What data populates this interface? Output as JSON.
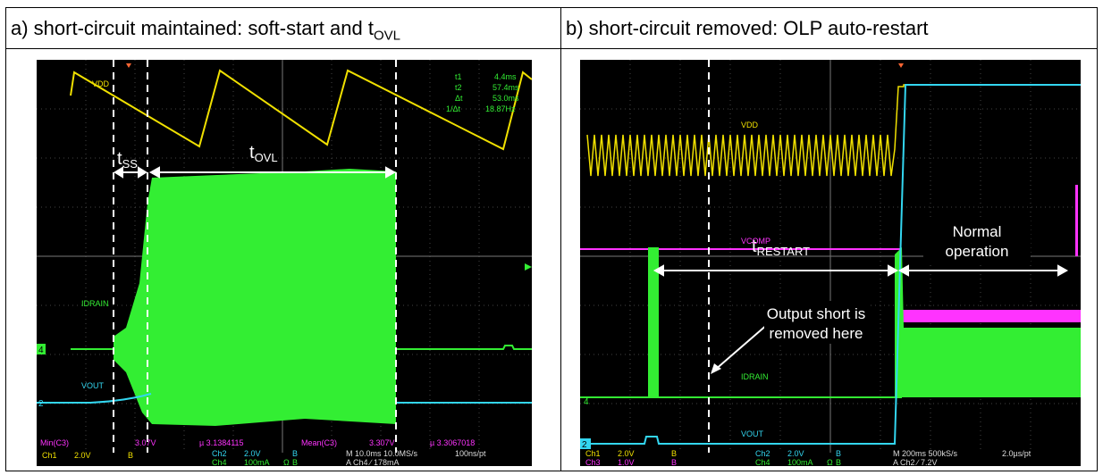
{
  "panel_a": {
    "header": "a) short-circuit maintained: soft-start and t",
    "header_sub": "OVL",
    "trace_labels": {
      "vdd": "VDD",
      "idrain": "IDRAIN",
      "vout": "VOUT"
    },
    "annot": {
      "tss": "t",
      "tss_sub": "SS",
      "tovl": "t",
      "tovl_sub": "OVL"
    },
    "cursor_readout": [
      "t1",
      "4.4ms",
      "t2",
      "57.4ms",
      "Δt",
      "53.0ms",
      "1/Δt",
      "18.87Hz"
    ],
    "markers": {
      "ch4": "4",
      "ch2": "2"
    },
    "stats": [
      "Min(C3)",
      "3.07V",
      "µ 3.1384115",
      "Mean(C3)",
      "3.307V",
      "µ 3.3067018"
    ],
    "bottom": {
      "ch1": "Ch1",
      "ch1v": "2.0V",
      "bw1": "B",
      "ch2": "Ch2",
      "ch2v": "2.0V",
      "ch4": "Ch4",
      "ch4v": "100mA",
      "omega": "Ω",
      "bw2": "B",
      "bw3": "B",
      "timebase": "M 10.0ms 10.0MS/s",
      "pt": "100ns/pt",
      "trig": "A  Ch4  ∕  178mA"
    }
  },
  "panel_b": {
    "header": "b) short-circuit removed: OLP auto-restart",
    "trace_labels": {
      "vdd": "VDD",
      "vcomp": "VCOMP",
      "idrain": "IDRAIN",
      "vout": "VOUT"
    },
    "annot": {
      "trestart": "t",
      "trestart_sub": "RESTART",
      "normal1": "Normal",
      "normal2": "operation",
      "short1": "Output short is",
      "short2": "removed here"
    },
    "markers": {
      "ch4": "4",
      "ch2": "2"
    },
    "bottom": {
      "ch1": "Ch1",
      "ch1v": "2.0V",
      "ch3": "Ch3",
      "ch3v": "1.0V",
      "bw": "B",
      "ch2": "Ch2",
      "ch2v": "2.0V",
      "ch4": "Ch4",
      "ch4v": "100mA",
      "omega": "Ω",
      "timebase": "M 200ms 500kS/s",
      "pt": "2.0µs/pt",
      "trig": "A  Ch2  ∕  7.2V"
    }
  },
  "colors": {
    "vdd": "#f0e000",
    "idrain": "#33ee33",
    "vout": "#33d6f0",
    "vcomp": "#ff33ff",
    "scope_bg": "#000000"
  }
}
